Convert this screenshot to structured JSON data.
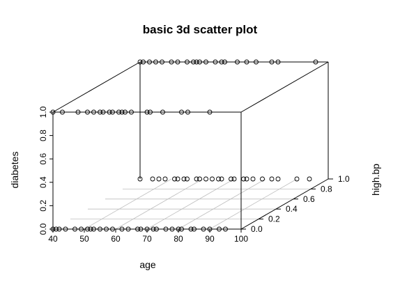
{
  "chart_data": {
    "type": "scatter",
    "title": "basic 3d scatter plot",
    "xlabel": "age",
    "ylabel": "high.bp",
    "zlabel": "diabetes",
    "xlim": [
      40,
      100
    ],
    "ylim": [
      0,
      1
    ],
    "zlim": [
      0,
      1
    ],
    "x_ticks": [
      40,
      50,
      60,
      70,
      80,
      90,
      100
    ],
    "y_ticks": [
      0.0,
      0.2,
      0.4,
      0.6,
      0.8,
      1.0
    ],
    "z_ticks": [
      0.0,
      0.2,
      0.4,
      0.6,
      0.8,
      1.0
    ],
    "x_tick_labels": [
      "40",
      "50",
      "60",
      "70",
      "80",
      "90",
      "100"
    ],
    "y_tick_labels": [
      "0.0",
      "0.2",
      "0.4",
      "0.6",
      "0.8",
      "1.0"
    ],
    "z_tick_labels": [
      "0.0",
      "0.2",
      "0.4",
      "0.6",
      "0.8",
      "1.0"
    ],
    "grid": "floor",
    "points": [
      {
        "x": 40,
        "y": 0,
        "z": 0
      },
      {
        "x": 41,
        "y": 0,
        "z": 0
      },
      {
        "x": 42,
        "y": 0,
        "z": 0
      },
      {
        "x": 44,
        "y": 0,
        "z": 0
      },
      {
        "x": 47,
        "y": 0,
        "z": 0
      },
      {
        "x": 49,
        "y": 0,
        "z": 0
      },
      {
        "x": 51,
        "y": 0,
        "z": 0
      },
      {
        "x": 52,
        "y": 0,
        "z": 0
      },
      {
        "x": 53,
        "y": 0,
        "z": 0
      },
      {
        "x": 55,
        "y": 0,
        "z": 0
      },
      {
        "x": 57,
        "y": 0,
        "z": 0
      },
      {
        "x": 59,
        "y": 0,
        "z": 0
      },
      {
        "x": 62,
        "y": 0,
        "z": 0
      },
      {
        "x": 64,
        "y": 0,
        "z": 0
      },
      {
        "x": 67,
        "y": 0,
        "z": 0
      },
      {
        "x": 68,
        "y": 0,
        "z": 0
      },
      {
        "x": 70,
        "y": 0,
        "z": 0
      },
      {
        "x": 72,
        "y": 0,
        "z": 0
      },
      {
        "x": 73,
        "y": 0,
        "z": 0
      },
      {
        "x": 76,
        "y": 0,
        "z": 0
      },
      {
        "x": 78,
        "y": 0,
        "z": 0
      },
      {
        "x": 80,
        "y": 0,
        "z": 0
      },
      {
        "x": 81,
        "y": 0,
        "z": 0
      },
      {
        "x": 84,
        "y": 0,
        "z": 0
      },
      {
        "x": 85,
        "y": 0,
        "z": 0
      },
      {
        "x": 88,
        "y": 0,
        "z": 0
      },
      {
        "x": 90,
        "y": 0,
        "z": 0
      },
      {
        "x": 93,
        "y": 0,
        "z": 0
      },
      {
        "x": 95,
        "y": 0,
        "z": 0
      },
      {
        "x": 40,
        "y": 0,
        "z": 1
      },
      {
        "x": 43,
        "y": 0,
        "z": 1
      },
      {
        "x": 48,
        "y": 0,
        "z": 1
      },
      {
        "x": 51,
        "y": 0,
        "z": 1
      },
      {
        "x": 53,
        "y": 0,
        "z": 1
      },
      {
        "x": 55,
        "y": 0,
        "z": 1
      },
      {
        "x": 56,
        "y": 0,
        "z": 1
      },
      {
        "x": 58,
        "y": 0,
        "z": 1
      },
      {
        "x": 59,
        "y": 0,
        "z": 1
      },
      {
        "x": 61,
        "y": 0,
        "z": 1
      },
      {
        "x": 62,
        "y": 0,
        "z": 1
      },
      {
        "x": 63,
        "y": 0,
        "z": 1
      },
      {
        "x": 65,
        "y": 0,
        "z": 1
      },
      {
        "x": 70,
        "y": 0,
        "z": 1
      },
      {
        "x": 71,
        "y": 0,
        "z": 1
      },
      {
        "x": 75,
        "y": 0,
        "z": 1
      },
      {
        "x": 81,
        "y": 0,
        "z": 1
      },
      {
        "x": 83,
        "y": 0,
        "z": 1
      },
      {
        "x": 90,
        "y": 0,
        "z": 1
      },
      {
        "x": 40,
        "y": 1,
        "z": 0
      },
      {
        "x": 44,
        "y": 1,
        "z": 0
      },
      {
        "x": 46,
        "y": 1,
        "z": 0
      },
      {
        "x": 48,
        "y": 1,
        "z": 0
      },
      {
        "x": 51,
        "y": 1,
        "z": 0
      },
      {
        "x": 52,
        "y": 1,
        "z": 0
      },
      {
        "x": 54,
        "y": 1,
        "z": 0
      },
      {
        "x": 55,
        "y": 1,
        "z": 0
      },
      {
        "x": 58,
        "y": 1,
        "z": 0
      },
      {
        "x": 59,
        "y": 1,
        "z": 0
      },
      {
        "x": 61,
        "y": 1,
        "z": 0
      },
      {
        "x": 63,
        "y": 1,
        "z": 0
      },
      {
        "x": 65,
        "y": 1,
        "z": 0
      },
      {
        "x": 66,
        "y": 1,
        "z": 0
      },
      {
        "x": 69,
        "y": 1,
        "z": 0
      },
      {
        "x": 70,
        "y": 1,
        "z": 0
      },
      {
        "x": 73,
        "y": 1,
        "z": 0
      },
      {
        "x": 74,
        "y": 1,
        "z": 0
      },
      {
        "x": 76,
        "y": 1,
        "z": 0
      },
      {
        "x": 79,
        "y": 1,
        "z": 0
      },
      {
        "x": 82,
        "y": 1,
        "z": 0
      },
      {
        "x": 84,
        "y": 1,
        "z": 0
      },
      {
        "x": 90,
        "y": 1,
        "z": 0
      },
      {
        "x": 94,
        "y": 1,
        "z": 0
      },
      {
        "x": 40,
        "y": 1,
        "z": 1
      },
      {
        "x": 41,
        "y": 1,
        "z": 1
      },
      {
        "x": 43,
        "y": 1,
        "z": 1
      },
      {
        "x": 45,
        "y": 1,
        "z": 1
      },
      {
        "x": 47,
        "y": 1,
        "z": 1
      },
      {
        "x": 50,
        "y": 1,
        "z": 1
      },
      {
        "x": 52,
        "y": 1,
        "z": 1
      },
      {
        "x": 55,
        "y": 1,
        "z": 1
      },
      {
        "x": 57,
        "y": 1,
        "z": 1
      },
      {
        "x": 58,
        "y": 1,
        "z": 1
      },
      {
        "x": 59,
        "y": 1,
        "z": 1
      },
      {
        "x": 61,
        "y": 1,
        "z": 1
      },
      {
        "x": 64,
        "y": 1,
        "z": 1
      },
      {
        "x": 66,
        "y": 1,
        "z": 1
      },
      {
        "x": 67,
        "y": 1,
        "z": 1
      },
      {
        "x": 71,
        "y": 1,
        "z": 1
      },
      {
        "x": 74,
        "y": 1,
        "z": 1
      },
      {
        "x": 77,
        "y": 1,
        "z": 1
      },
      {
        "x": 82,
        "y": 1,
        "z": 1
      },
      {
        "x": 84,
        "y": 1,
        "z": 1
      },
      {
        "x": 96,
        "y": 1,
        "z": 1
      }
    ]
  }
}
